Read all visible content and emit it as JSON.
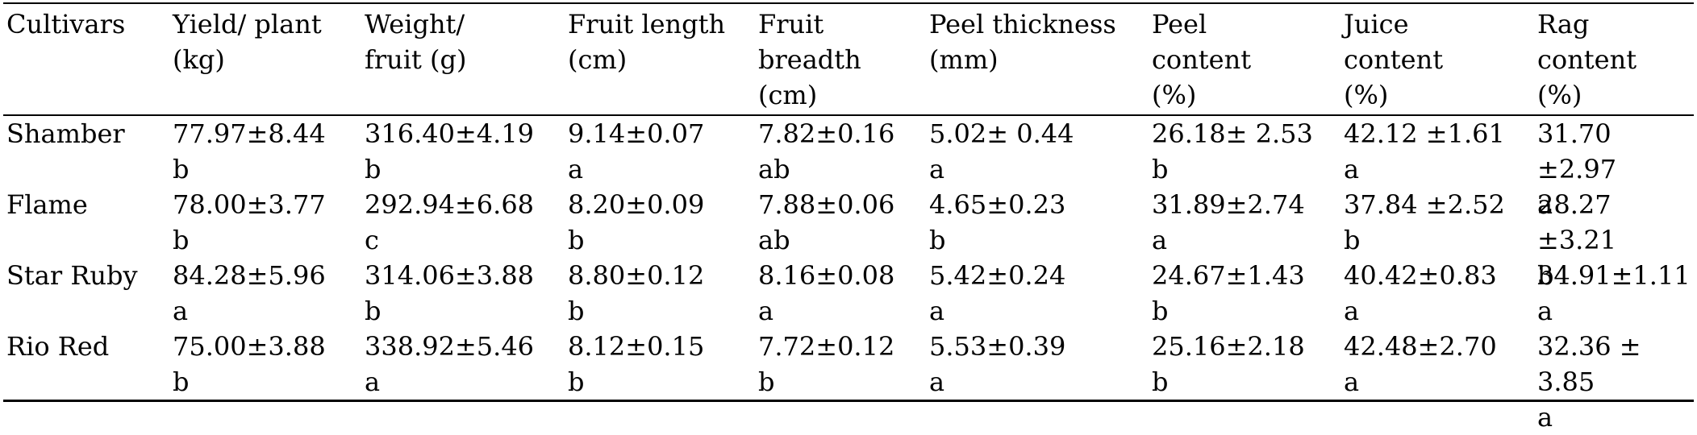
{
  "headers": [
    "Cultivars",
    "Yield/ plant\n(kg)",
    "Weight/\nfruit (g)",
    "Fruit length\n(cm)",
    "Fruit\nbreadth\n(cm)",
    "Peel thickness\n(mm)",
    "Peel\ncontent\n(%)",
    "Juice\ncontent\n (%)",
    "Rag\ncontent\n (%)"
  ],
  "rows": [
    {
      "cultivar": "Shamber",
      "cells": [
        "77.97±8.44\nb",
        "316.40±4.19\nb",
        "9.14±0.07\na",
        "7.82±0.16\nab",
        "5.02± 0.44\na",
        "26.18± 2.53\nb",
        "42.12 ±1.61\na",
        "31.70 ±2.97\na"
      ]
    },
    {
      "cultivar": "Flame",
      "cells": [
        "78.00±3.77\nb",
        "292.94±6.68\nc",
        "8.20±0.09\nb",
        "7.88±0.06\nab",
        "4.65±0.23\nb",
        "31.89±2.74\na",
        "37.84 ±2.52\nb",
        "28.27 ±3.21\nb"
      ]
    },
    {
      "cultivar": "Star Ruby",
      "cells": [
        "84.28±5.96\na",
        "314.06±3.88\nb",
        "8.80±0.12\nb",
        "8.16±0.08\na",
        "5.42±0.24\na",
        "24.67±1.43\nb",
        "40.42±0.83\na",
        "34.91±1.11\na"
      ]
    },
    {
      "cultivar": "Rio Red",
      "cells": [
        "75.00±3.88\nb",
        "338.92±5.46\na",
        "8.12±0.15\nb",
        "7.72±0.12\nb",
        "5.53±0.39\na",
        "25.16±2.18\nb",
        "42.48±2.70\na",
        "32.36 ± 3.85\na"
      ]
    }
  ]
}
